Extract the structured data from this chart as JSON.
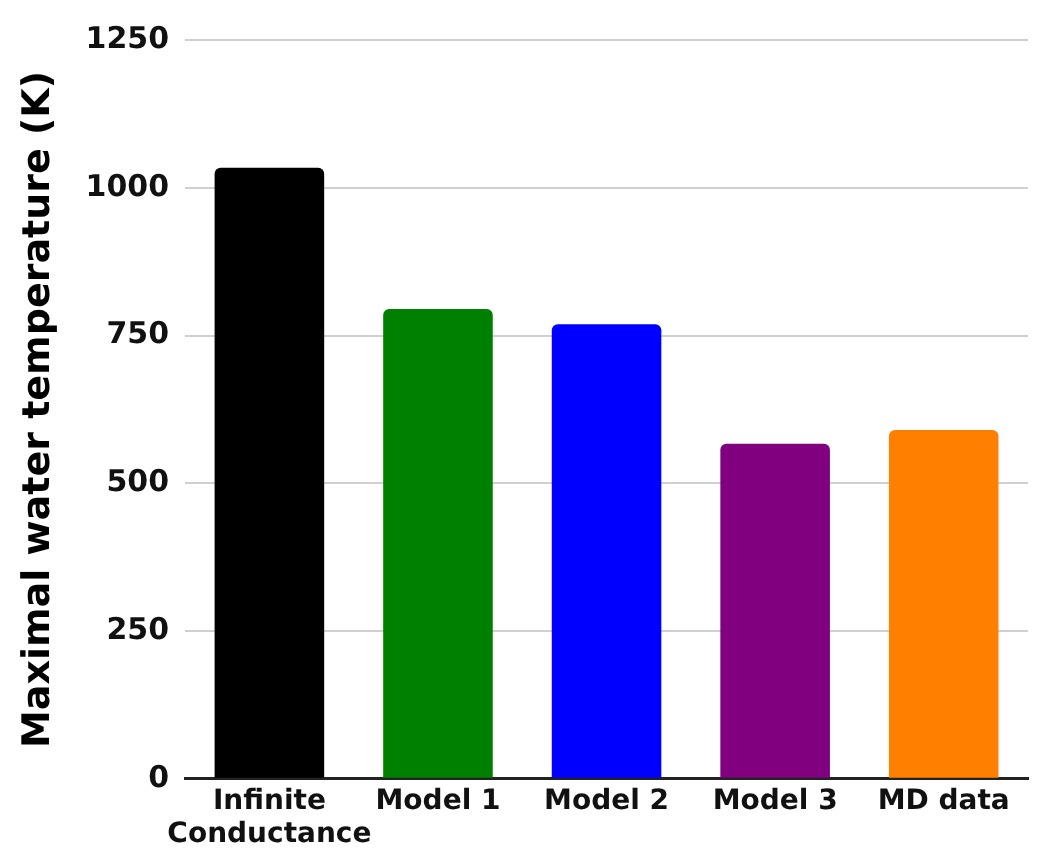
{
  "chart_data": {
    "type": "bar",
    "ylabel": "Maximal water temperature (K)",
    "categories": [
      "Infinite Conductance",
      "Model 1",
      "Model 2",
      "Model 3",
      "MD data"
    ],
    "values": [
      1034,
      795,
      769,
      567,
      590
    ],
    "colors": [
      "#000000",
      "#008000",
      "#0000ff",
      "#800080",
      "#ff8000"
    ],
    "ylim": [
      0,
      1250
    ],
    "yticks": [
      0,
      250,
      500,
      750,
      1000,
      1250
    ],
    "grid": "y",
    "legend": false
  }
}
